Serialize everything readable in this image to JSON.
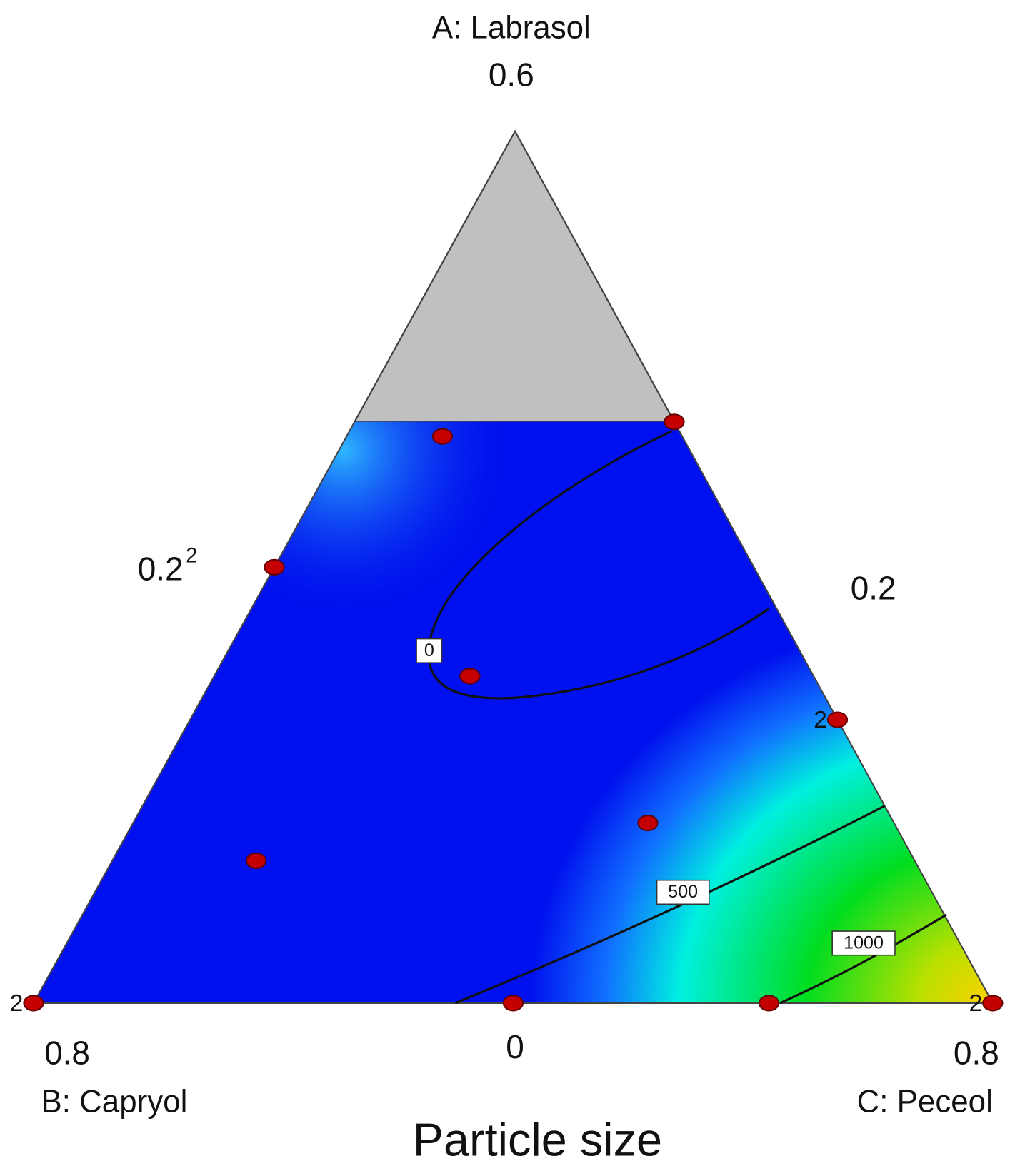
{
  "chart_data": {
    "type": "ternary",
    "title": "Particle size",
    "axes": [
      {
        "title": "A: Labrasol",
        "low": 0,
        "high": 0.6
      },
      {
        "title": "B: Capryol",
        "low": 0.2,
        "high": 0.8
      },
      {
        "title": "C: Peceol",
        "low": 0.2,
        "high": 0.8
      }
    ],
    "constraint_a_max": 0.4,
    "contour_levels": [
      0,
      500,
      1000
    ],
    "point_color": "#c40000",
    "points": [
      {
        "A": 0.4,
        "B": 0.2,
        "C": 0.4
      },
      {
        "A": 0.39,
        "B": 0.35,
        "C": 0.26
      },
      {
        "A": 0.3,
        "B": 0.5,
        "C": 0.2,
        "label": "2"
      },
      {
        "A": 0.225,
        "B": 0.415,
        "C": 0.36
      },
      {
        "A": 0.195,
        "B": 0.2,
        "C": 0.605,
        "label": "2"
      },
      {
        "A": 0.124,
        "B": 0.354,
        "C": 0.522
      },
      {
        "A": 0.098,
        "B": 0.612,
        "C": 0.29
      },
      {
        "A": 0,
        "B": 0.8,
        "C": 0.2,
        "label": "2"
      },
      {
        "A": 0,
        "B": 0.5,
        "C": 0.5
      },
      {
        "A": 0,
        "B": 0.34,
        "C": 0.66
      },
      {
        "A": 0,
        "B": 0.2,
        "C": 0.8,
        "label": "2"
      }
    ]
  }
}
